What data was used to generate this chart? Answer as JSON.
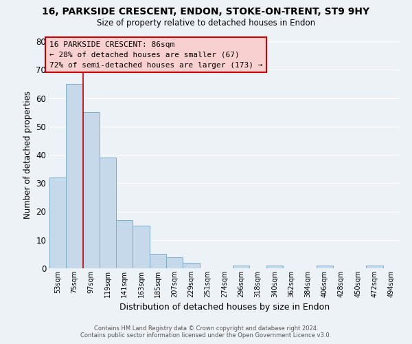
{
  "title": "16, PARKSIDE CRESCENT, ENDON, STOKE-ON-TRENT, ST9 9HY",
  "subtitle": "Size of property relative to detached houses in Endon",
  "xlabel": "Distribution of detached houses by size in Endon",
  "ylabel": "Number of detached properties",
  "footer1": "Contains HM Land Registry data © Crown copyright and database right 2024.",
  "footer2": "Contains public sector information licensed under the Open Government Licence v3.0.",
  "bar_labels": [
    "53sqm",
    "75sqm",
    "97sqm",
    "119sqm",
    "141sqm",
    "163sqm",
    "185sqm",
    "207sqm",
    "229sqm",
    "251sqm",
    "274sqm",
    "296sqm",
    "318sqm",
    "340sqm",
    "362sqm",
    "384sqm",
    "406sqm",
    "428sqm",
    "450sqm",
    "472sqm",
    "494sqm"
  ],
  "bar_values": [
    32,
    65,
    55,
    39,
    17,
    15,
    5,
    4,
    2,
    0,
    0,
    1,
    0,
    1,
    0,
    0,
    1,
    0,
    0,
    1,
    0
  ],
  "bar_color": "#c6d9ea",
  "bar_edge_color": "#7aafc8",
  "ylim": [
    0,
    80
  ],
  "yticks": [
    0,
    10,
    20,
    30,
    40,
    50,
    60,
    70,
    80
  ],
  "property_line_color": "#cc0000",
  "annotation_text1": "16 PARKSIDE CRESCENT: 86sqm",
  "annotation_text2": "← 28% of detached houses are smaller (67)",
  "annotation_text3": "72% of semi-detached houses are larger (173) →",
  "annotation_box_color": "#f8d0d0",
  "annotation_border_color": "#cc0000",
  "bg_color": "#edf2f7",
  "grid_color": "white"
}
